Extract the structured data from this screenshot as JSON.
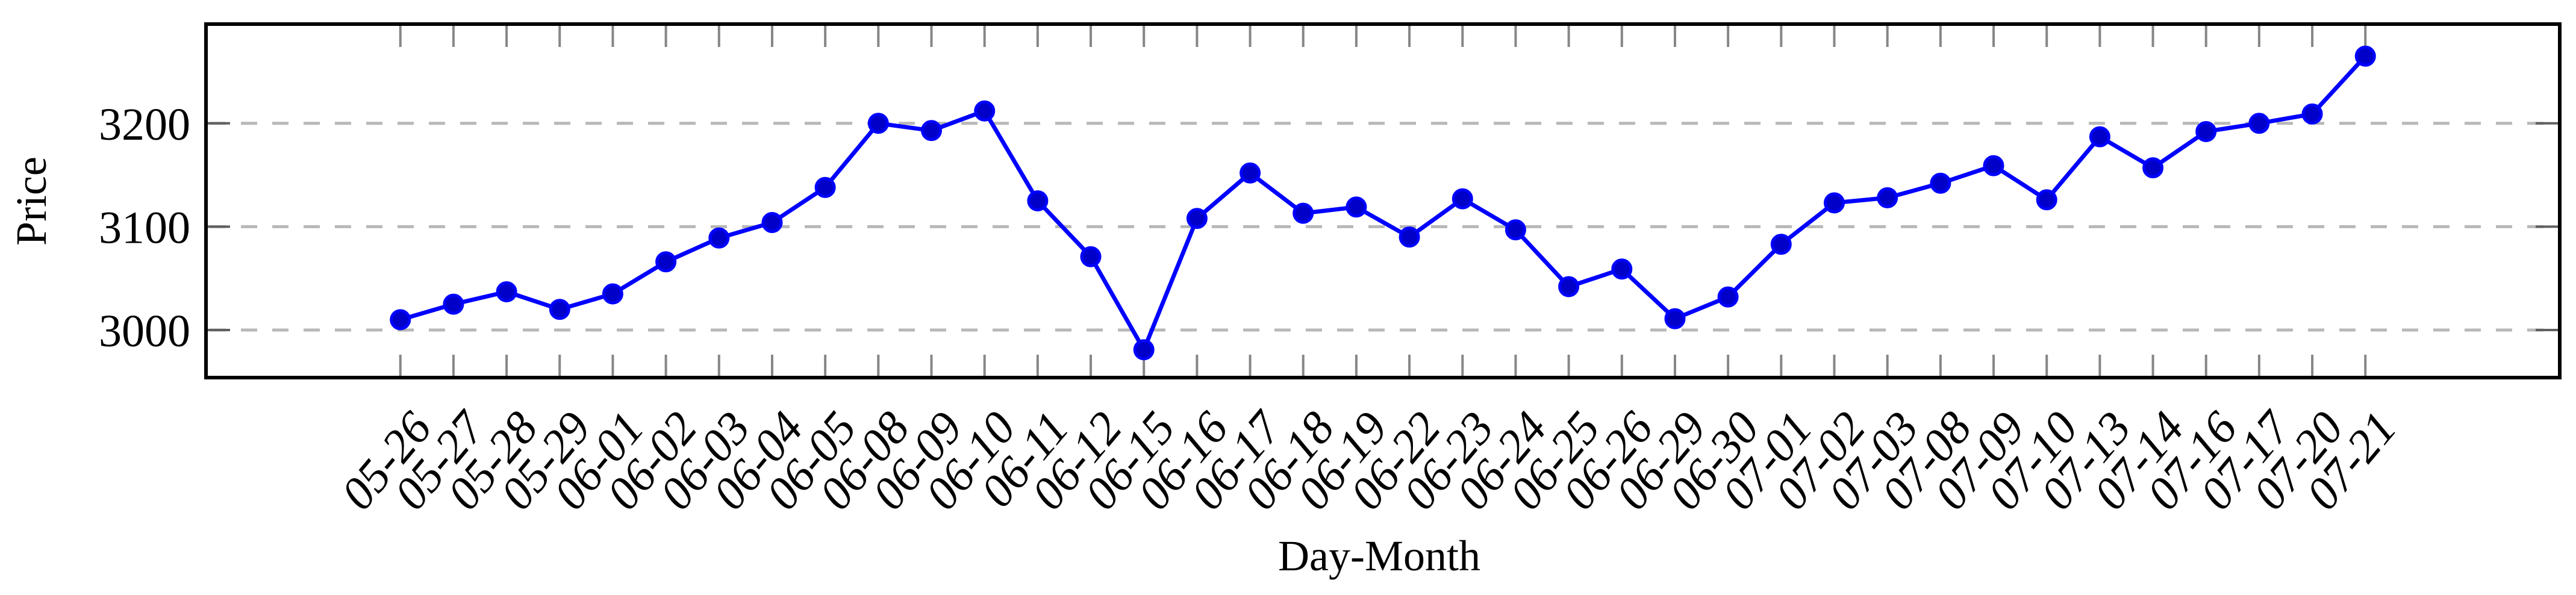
{
  "figure": {
    "background_color": "#ffffff"
  },
  "chart_data": {
    "type": "line",
    "title": "",
    "xlabel": "Day-Month",
    "ylabel": "Price",
    "categories": [
      "05-26",
      "05-27",
      "05-28",
      "05-29",
      "06-01",
      "06-02",
      "06-03",
      "06-04",
      "06-05",
      "06-08",
      "06-09",
      "06-10",
      "06-11",
      "06-12",
      "06-15",
      "06-16",
      "06-17",
      "06-18",
      "06-19",
      "06-22",
      "06-23",
      "06-24",
      "06-25",
      "06-26",
      "06-29",
      "06-30",
      "07-01",
      "07-02",
      "07-03",
      "07-08",
      "07-09",
      "07-10",
      "07-13",
      "07-14",
      "07-16",
      "07-17",
      "07-20",
      "07-21"
    ],
    "series": [
      {
        "name": "Price",
        "values": [
          3010,
          3025,
          3037,
          3020,
          3035,
          3066,
          3089,
          3104,
          3138,
          3200,
          3193,
          3212,
          3125,
          3071,
          2981,
          3108,
          3152,
          3113,
          3119,
          3090,
          3127,
          3097,
          3042,
          3059,
          3011,
          3032,
          3083,
          3123,
          3128,
          3142,
          3159,
          3126,
          3187,
          3157,
          3192,
          3200,
          3209,
          3265
        ]
      }
    ],
    "yticks": [
      3000,
      3100,
      3200
    ],
    "ylim": [
      2954,
      3296
    ],
    "xlim_index": [
      -3.66,
      40.66
    ],
    "grid": "horizontal-dashed",
    "legend": "none",
    "styles": {
      "line_color": "#0000fe",
      "marker_fill": "#0000c8",
      "marker_edge": "#0000fe",
      "grid_color": "#b8b8b8",
      "xtick_color": "#868686",
      "ytick_color": "#606060",
      "axis_color": "#000000",
      "text_color": "#000000",
      "xticklabel_rotation_deg": -50,
      "xticklabel_style": "italic"
    }
  }
}
